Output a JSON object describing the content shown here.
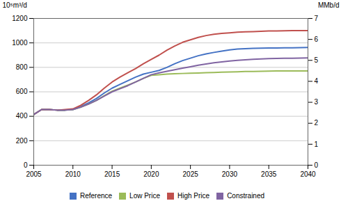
{
  "chart_data": {
    "type": "line",
    "x": [
      2005,
      2006,
      2007,
      2008,
      2009,
      2010,
      2011,
      2012,
      2013,
      2014,
      2015,
      2016,
      2017,
      2018,
      2019,
      2020,
      2021,
      2022,
      2023,
      2024,
      2025,
      2026,
      2027,
      2028,
      2029,
      2030,
      2031,
      2032,
      2033,
      2034,
      2035,
      2036,
      2037,
      2038,
      2039,
      2040
    ],
    "series": [
      {
        "name": "Reference",
        "color": "#4472C4",
        "values": [
          415,
          455,
          455,
          450,
          450,
          455,
          480,
          510,
          545,
          590,
          630,
          660,
          690,
          720,
          745,
          760,
          775,
          800,
          830,
          855,
          875,
          895,
          910,
          922,
          933,
          943,
          950,
          953,
          955,
          957,
          958,
          959,
          960,
          960,
          961,
          962
        ]
      },
      {
        "name": "Low Price",
        "color": "#9BBB59",
        "values": [
          415,
          455,
          455,
          450,
          450,
          455,
          475,
          500,
          530,
          568,
          605,
          630,
          655,
          680,
          710,
          735,
          740,
          745,
          748,
          750,
          752,
          754,
          756,
          758,
          760,
          762,
          764,
          766,
          767,
          768,
          769,
          770,
          770,
          770,
          770,
          770
        ]
      },
      {
        "name": "High Price",
        "color": "#C0504D",
        "values": [
          415,
          455,
          455,
          450,
          455,
          460,
          490,
          530,
          575,
          630,
          680,
          720,
          755,
          790,
          830,
          865,
          900,
          940,
          975,
          1005,
          1025,
          1045,
          1060,
          1070,
          1078,
          1082,
          1087,
          1090,
          1092,
          1095,
          1097,
          1098,
          1099,
          1100,
          1100,
          1100
        ]
      },
      {
        "name": "Constrained",
        "color": "#8064A2",
        "values": [
          415,
          455,
          455,
          450,
          450,
          455,
          475,
          500,
          530,
          565,
          600,
          625,
          650,
          680,
          710,
          740,
          755,
          768,
          780,
          793,
          805,
          818,
          828,
          837,
          845,
          852,
          858,
          862,
          866,
          869,
          872,
          873,
          874,
          875,
          876,
          877
        ]
      }
    ],
    "xlim": [
      2005,
      2040
    ],
    "xticks": [
      2005,
      2010,
      2015,
      2020,
      2025,
      2030,
      2035,
      2040
    ],
    "ylim": [
      0,
      1200
    ],
    "yticks": [
      0,
      200,
      400,
      600,
      800,
      1000,
      1200
    ],
    "y2lim": [
      0,
      7
    ],
    "y2ticks": [
      0,
      1,
      2,
      3,
      4,
      5,
      6,
      7
    ],
    "ylabel": "10⁵m³/d",
    "y2label": "MMb/d",
    "grid": true,
    "legend": "bottom"
  }
}
